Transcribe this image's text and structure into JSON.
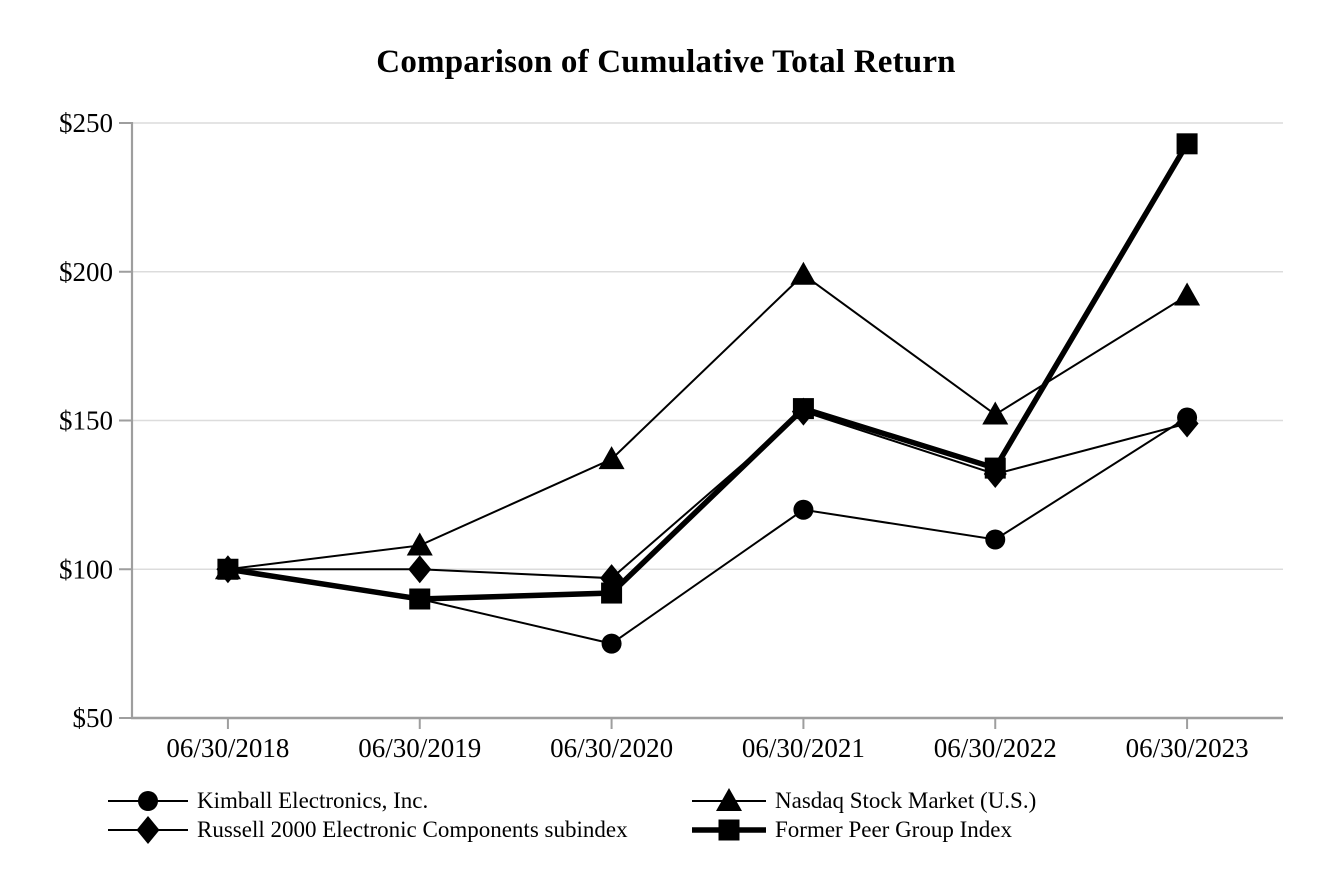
{
  "chart_data": {
    "type": "line",
    "title": "Comparison of Cumulative Total Return",
    "categories": [
      "06/30/2018",
      "06/30/2019",
      "06/30/2020",
      "06/30/2021",
      "06/30/2022",
      "06/30/2023"
    ],
    "series": [
      {
        "name": "Kimball Electronics, Inc.",
        "marker": "circle",
        "line_weight": "normal",
        "values": [
          100,
          90,
          75,
          120,
          110,
          151
        ]
      },
      {
        "name": "Nasdaq Stock Market (U.S.)",
        "marker": "triangle",
        "line_weight": "normal",
        "values": [
          100,
          108,
          137,
          199,
          152,
          192
        ]
      },
      {
        "name": "Russell 2000 Electronic Components subindex",
        "marker": "diamond",
        "line_weight": "normal",
        "values": [
          100,
          100,
          97,
          153,
          132,
          149
        ]
      },
      {
        "name": "Former Peer Group Index",
        "marker": "square",
        "line_weight": "thick",
        "values": [
          100,
          90,
          92,
          154,
          134,
          243
        ]
      }
    ],
    "xlabel": "",
    "ylabel": "",
    "ylim": [
      50,
      250
    ],
    "y_tick_values": [
      50,
      100,
      150,
      200,
      250
    ],
    "y_tick_labels": [
      "$50",
      "$100",
      "$150",
      "$200",
      "$250"
    ],
    "grid": "horizontal",
    "legend_position": "bottom",
    "legend_columns": [
      [
        0,
        2
      ],
      [
        1,
        3
      ]
    ],
    "colors": {
      "series": "#000000",
      "gridline": "#dcdcdc",
      "axis": "#9e9e9e",
      "background": "#ffffff",
      "text": "#000000"
    }
  }
}
